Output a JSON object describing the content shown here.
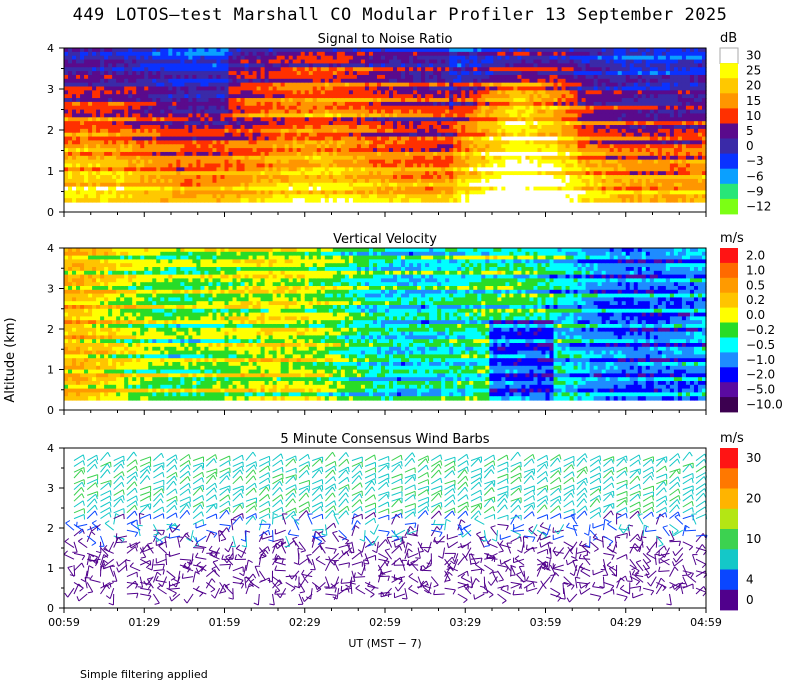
{
  "title": "449 LOTOS—test Marshall CO Modular Profiler 13 September 2025",
  "ylabel": "Altitude (km)",
  "footnote": "Simple filtering applied",
  "chart_data": [
    {
      "type": "heatmap",
      "title": "Signal to Noise Ratio",
      "unit": "dB",
      "x_ticks": [
        "00:59",
        "01:29",
        "01:59",
        "02:29",
        "02:59",
        "03:29",
        "03:59",
        "04:29",
        "04:59"
      ],
      "y_ticks": [
        0,
        1,
        2,
        3,
        4
      ],
      "ylim": [
        0,
        4
      ],
      "legend": [
        {
          "label": "30",
          "color": "#ffffff"
        },
        {
          "label": "25",
          "color": "#ffff00"
        },
        {
          "label": "20",
          "color": "#ffc800"
        },
        {
          "label": "15",
          "color": "#ff9600"
        },
        {
          "label": "10",
          "color": "#ff3000"
        },
        {
          "label": "5",
          "color": "#5a0a8c"
        },
        {
          "label": "0",
          "color": "#3a2aa8"
        },
        {
          "label": "−3",
          "color": "#0a32ff"
        },
        {
          "label": "−6",
          "color": "#0aa0ff"
        },
        {
          "label": "−9",
          "color": "#28e678"
        },
        {
          "label": "−12",
          "color": "#7cff14"
        }
      ]
    },
    {
      "type": "heatmap",
      "title": "Vertical Velocity",
      "unit": "m/s",
      "x_ticks": [
        "00:59",
        "01:29",
        "01:59",
        "02:29",
        "02:59",
        "03:29",
        "03:59",
        "04:29",
        "04:59"
      ],
      "y_ticks": [
        0,
        1,
        2,
        3,
        4
      ],
      "ylim": [
        0,
        4
      ],
      "legend": [
        {
          "label": "2.0",
          "color": "#ff1414"
        },
        {
          "label": "1.0",
          "color": "#ff6a00"
        },
        {
          "label": "0.5",
          "color": "#ff9a00"
        },
        {
          "label": "0.2",
          "color": "#ffc400"
        },
        {
          "label": "0.0",
          "color": "#ffff00"
        },
        {
          "label": "−0.2",
          "color": "#28dc28"
        },
        {
          "label": "−0.5",
          "color": "#00ffff"
        },
        {
          "label": "−1.0",
          "color": "#1e8cff"
        },
        {
          "label": "−2.0",
          "color": "#0000ff"
        },
        {
          "label": "−5.0",
          "color": "#5a0aa0"
        },
        {
          "label": "−10.0",
          "color": "#3c0050"
        }
      ]
    },
    {
      "type": "wind-barbs",
      "title": "5 Minute Consensus Wind Barbs",
      "unit": "m/s",
      "x_ticks": [
        "00:59",
        "01:29",
        "01:59",
        "02:29",
        "02:59",
        "03:29",
        "03:59",
        "04:29",
        "04:59"
      ],
      "y_ticks": [
        0,
        1,
        2,
        3,
        4
      ],
      "ylim": [
        0,
        4
      ],
      "legend": [
        {
          "label": "30",
          "color": "#ff1414"
        },
        {
          "label": "",
          "color": "#ff7800"
        },
        {
          "label": "20",
          "color": "#ffb400"
        },
        {
          "label": "",
          "color": "#b4e614"
        },
        {
          "label": "10",
          "color": "#3cd250"
        },
        {
          "label": "",
          "color": "#14c8c8"
        },
        {
          "label": "4",
          "color": "#0a46ff"
        },
        {
          "label": "0",
          "color": "#50008c"
        }
      ]
    }
  ],
  "xlabel": "UT  (MST − 7)"
}
